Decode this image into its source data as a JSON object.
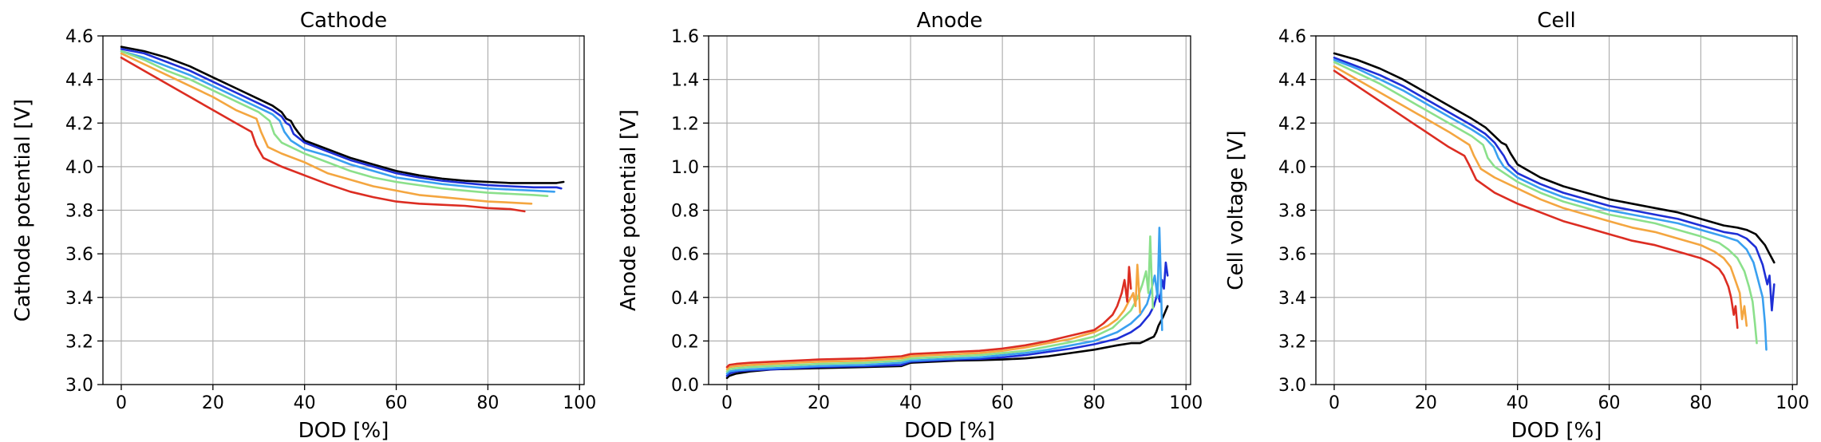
{
  "chart_data": [
    {
      "type": "line",
      "title": "Cathode",
      "xlabel": "DOD [%]",
      "ylabel": "Cathode potential [V]",
      "xlim": [
        -4,
        101
      ],
      "ylim": [
        3.0,
        4.6
      ],
      "xticks": [
        0,
        20,
        40,
        60,
        80,
        100
      ],
      "yticks": [
        3.0,
        3.2,
        3.4,
        3.6,
        3.8,
        4.0,
        4.2,
        4.4,
        4.6
      ],
      "tick_decimals": 1,
      "grid": true,
      "series": [
        {
          "color": "#000000",
          "x": [
            0,
            5,
            10,
            15,
            20,
            25,
            30,
            33,
            35,
            36,
            37,
            37.8,
            38.5,
            40,
            45,
            50,
            55,
            60,
            65,
            70,
            75,
            80,
            85,
            90,
            95,
            96.5
          ],
          "y": [
            4.55,
            4.53,
            4.5,
            4.46,
            4.41,
            4.36,
            4.31,
            4.28,
            4.25,
            4.22,
            4.21,
            4.18,
            4.16,
            4.12,
            4.08,
            4.04,
            4.01,
            3.98,
            3.96,
            3.945,
            3.935,
            3.93,
            3.925,
            3.925,
            3.925,
            3.93
          ]
        },
        {
          "color": "#1e2fd6",
          "x": [
            0,
            5,
            10,
            15,
            20,
            25,
            30,
            33,
            35,
            36,
            36.8,
            37.6,
            40,
            45,
            50,
            55,
            60,
            65,
            70,
            75,
            80,
            85,
            90,
            95,
            96
          ],
          "y": [
            4.54,
            4.52,
            4.48,
            4.44,
            4.39,
            4.34,
            4.29,
            4.26,
            4.23,
            4.2,
            4.19,
            4.15,
            4.11,
            4.07,
            4.03,
            4.0,
            3.97,
            3.95,
            3.935,
            3.925,
            3.915,
            3.91,
            3.905,
            3.905,
            3.9
          ]
        },
        {
          "color": "#3aa0f0",
          "x": [
            0,
            5,
            10,
            15,
            20,
            25,
            30,
            33,
            34.6,
            35.6,
            37,
            40,
            45,
            50,
            55,
            60,
            65,
            70,
            75,
            80,
            85,
            90,
            94.5
          ],
          "y": [
            4.53,
            4.5,
            4.46,
            4.42,
            4.37,
            4.32,
            4.27,
            4.24,
            4.21,
            4.16,
            4.12,
            4.08,
            4.05,
            4.01,
            3.98,
            3.95,
            3.935,
            3.92,
            3.91,
            3.9,
            3.895,
            3.89,
            3.885
          ]
        },
        {
          "color": "#8be08b",
          "x": [
            0,
            5,
            10,
            15,
            20,
            25,
            30,
            32.4,
            33.4,
            35,
            40,
            45,
            50,
            55,
            60,
            65,
            70,
            75,
            80,
            85,
            90,
            93
          ],
          "y": [
            4.53,
            4.49,
            4.44,
            4.4,
            4.35,
            4.3,
            4.25,
            4.21,
            4.15,
            4.11,
            4.06,
            4.02,
            3.98,
            3.95,
            3.93,
            3.915,
            3.9,
            3.89,
            3.88,
            3.875,
            3.87,
            3.865
          ]
        },
        {
          "color": "#f4a640",
          "x": [
            0,
            5,
            10,
            15,
            20,
            25,
            29.5,
            30.5,
            32,
            35,
            40,
            45,
            50,
            55,
            60,
            65,
            70,
            75,
            80,
            85,
            89.5
          ],
          "y": [
            4.52,
            4.47,
            4.42,
            4.37,
            4.32,
            4.26,
            4.22,
            4.16,
            4.09,
            4.06,
            4.02,
            3.97,
            3.94,
            3.91,
            3.89,
            3.87,
            3.86,
            3.85,
            3.84,
            3.835,
            3.83
          ]
        },
        {
          "color": "#dc2d22",
          "x": [
            0,
            5,
            10,
            15,
            20,
            25,
            28.4,
            29.4,
            31,
            35,
            40,
            45,
            50,
            55,
            60,
            65,
            70,
            75,
            80,
            85,
            88
          ],
          "y": [
            4.5,
            4.44,
            4.38,
            4.32,
            4.26,
            4.2,
            4.16,
            4.1,
            4.04,
            4.0,
            3.96,
            3.92,
            3.885,
            3.86,
            3.84,
            3.83,
            3.825,
            3.82,
            3.81,
            3.805,
            3.795
          ]
        }
      ]
    },
    {
      "type": "line",
      "title": "Anode",
      "xlabel": "DOD [%]",
      "ylabel": "Anode potential [V]",
      "xlim": [
        -4,
        101
      ],
      "ylim": [
        0.0,
        1.6
      ],
      "xticks": [
        0,
        20,
        40,
        60,
        80,
        100
      ],
      "yticks": [
        0.0,
        0.2,
        0.4,
        0.6,
        0.8,
        1.0,
        1.2,
        1.4,
        1.6
      ],
      "tick_decimals": 1,
      "grid": true,
      "series": [
        {
          "color": "#000000",
          "x": [
            0,
            0.5,
            2,
            5,
            10,
            20,
            30,
            38,
            40,
            45,
            50,
            55,
            60,
            65,
            70,
            75,
            80,
            85,
            88,
            90,
            91,
            92,
            93,
            93.5,
            94,
            95,
            96
          ],
          "y": [
            0.03,
            0.04,
            0.05,
            0.06,
            0.07,
            0.075,
            0.08,
            0.085,
            0.1,
            0.105,
            0.11,
            0.112,
            0.115,
            0.12,
            0.13,
            0.145,
            0.16,
            0.18,
            0.19,
            0.19,
            0.2,
            0.21,
            0.22,
            0.24,
            0.27,
            0.31,
            0.36
          ]
        },
        {
          "color": "#1e2fd6",
          "x": [
            0,
            0.5,
            2,
            5,
            10,
            20,
            30,
            38,
            40,
            45,
            50,
            55,
            60,
            65,
            70,
            75,
            80,
            85,
            88,
            90,
            92,
            93,
            93.8,
            94.3,
            94.8,
            95.2,
            95.6,
            96
          ],
          "y": [
            0.04,
            0.05,
            0.06,
            0.065,
            0.07,
            0.08,
            0.085,
            0.09,
            0.105,
            0.11,
            0.115,
            0.118,
            0.125,
            0.135,
            0.15,
            0.165,
            0.185,
            0.21,
            0.24,
            0.27,
            0.32,
            0.36,
            0.42,
            0.38,
            0.48,
            0.44,
            0.56,
            0.5
          ]
        },
        {
          "color": "#3aa0f0",
          "x": [
            0,
            0.5,
            2,
            5,
            10,
            20,
            30,
            38,
            40,
            45,
            50,
            55,
            60,
            65,
            70,
            75,
            80,
            85,
            88,
            90,
            91.5,
            92.5,
            93.2,
            93.8,
            94.2,
            94.5,
            94.8
          ],
          "y": [
            0.05,
            0.06,
            0.065,
            0.07,
            0.075,
            0.085,
            0.09,
            0.1,
            0.11,
            0.115,
            0.12,
            0.125,
            0.135,
            0.145,
            0.16,
            0.18,
            0.2,
            0.24,
            0.28,
            0.32,
            0.37,
            0.44,
            0.5,
            0.4,
            0.72,
            0.5,
            0.25
          ]
        },
        {
          "color": "#8be08b",
          "x": [
            0,
            0.5,
            2,
            5,
            10,
            20,
            30,
            38,
            40,
            45,
            50,
            55,
            60,
            65,
            70,
            75,
            80,
            84,
            86,
            88,
            89.5,
            90.5,
            91.3,
            91.8,
            92.2,
            92.5,
            92.8
          ],
          "y": [
            0.06,
            0.07,
            0.075,
            0.08,
            0.085,
            0.095,
            0.1,
            0.11,
            0.12,
            0.125,
            0.13,
            0.135,
            0.145,
            0.155,
            0.175,
            0.195,
            0.22,
            0.26,
            0.3,
            0.34,
            0.4,
            0.46,
            0.52,
            0.42,
            0.68,
            0.5,
            0.35
          ]
        },
        {
          "color": "#f4a640",
          "x": [
            0,
            0.5,
            2,
            5,
            10,
            20,
            30,
            38,
            40,
            45,
            50,
            55,
            60,
            65,
            70,
            75,
            80,
            83,
            85,
            86.5,
            87.5,
            88.5,
            89,
            89.4,
            89.7,
            90
          ],
          "y": [
            0.07,
            0.08,
            0.085,
            0.09,
            0.095,
            0.105,
            0.11,
            0.12,
            0.13,
            0.135,
            0.14,
            0.145,
            0.155,
            0.17,
            0.19,
            0.21,
            0.24,
            0.27,
            0.3,
            0.34,
            0.38,
            0.42,
            0.36,
            0.55,
            0.45,
            0.33
          ]
        },
        {
          "color": "#dc2d22",
          "x": [
            0,
            0.5,
            2,
            5,
            10,
            20,
            30,
            38,
            40,
            45,
            50,
            55,
            60,
            65,
            70,
            75,
            80,
            82,
            84,
            85,
            86,
            86.6,
            87.2,
            87.6,
            88
          ],
          "y": [
            0.08,
            0.09,
            0.095,
            0.1,
            0.105,
            0.115,
            0.12,
            0.13,
            0.14,
            0.145,
            0.15,
            0.155,
            0.165,
            0.18,
            0.2,
            0.225,
            0.25,
            0.28,
            0.32,
            0.36,
            0.42,
            0.48,
            0.38,
            0.54,
            0.44
          ]
        }
      ]
    },
    {
      "type": "line",
      "title": "Cell",
      "xlabel": "DOD [%]",
      "ylabel": "Cell voltage [V]",
      "xlim": [
        -4,
        101
      ],
      "ylim": [
        3.0,
        4.6
      ],
      "xticks": [
        0,
        20,
        40,
        60,
        80,
        100
      ],
      "yticks": [
        3.0,
        3.2,
        3.4,
        3.6,
        3.8,
        4.0,
        4.2,
        4.4,
        4.6
      ],
      "tick_decimals": 1,
      "grid": true,
      "series": [
        {
          "color": "#000000",
          "x": [
            0,
            5,
            10,
            15,
            20,
            25,
            30,
            33,
            35,
            36.5,
            37.5,
            38.5,
            40,
            45,
            50,
            55,
            60,
            65,
            70,
            75,
            80,
            85,
            88,
            90,
            92,
            94,
            95,
            96
          ],
          "y": [
            4.52,
            4.49,
            4.45,
            4.4,
            4.34,
            4.28,
            4.22,
            4.18,
            4.14,
            4.11,
            4.1,
            4.06,
            4.01,
            3.95,
            3.91,
            3.88,
            3.85,
            3.83,
            3.81,
            3.79,
            3.76,
            3.73,
            3.72,
            3.71,
            3.69,
            3.64,
            3.6,
            3.56
          ]
        },
        {
          "color": "#1e2fd6",
          "x": [
            0,
            5,
            10,
            15,
            20,
            25,
            30,
            33,
            35,
            36,
            37,
            38,
            40,
            45,
            50,
            55,
            60,
            65,
            70,
            75,
            80,
            85,
            88,
            90,
            92,
            93.5,
            94.5,
            95,
            95.5,
            96
          ],
          "y": [
            4.5,
            4.46,
            4.42,
            4.37,
            4.31,
            4.25,
            4.19,
            4.15,
            4.11,
            4.08,
            4.05,
            4.01,
            3.97,
            3.92,
            3.88,
            3.85,
            3.82,
            3.8,
            3.78,
            3.76,
            3.73,
            3.7,
            3.69,
            3.67,
            3.63,
            3.55,
            3.46,
            3.5,
            3.34,
            3.46
          ]
        },
        {
          "color": "#3aa0f0",
          "x": [
            0,
            5,
            10,
            15,
            20,
            25,
            30,
            33,
            34.8,
            35.8,
            37,
            40,
            45,
            50,
            55,
            60,
            65,
            70,
            75,
            80,
            85,
            88,
            90,
            91.5,
            92.5,
            93.5,
            94,
            94.3
          ],
          "y": [
            4.49,
            4.45,
            4.4,
            4.35,
            4.29,
            4.23,
            4.17,
            4.13,
            4.09,
            4.04,
            4.0,
            3.95,
            3.9,
            3.86,
            3.83,
            3.8,
            3.78,
            3.76,
            3.74,
            3.71,
            3.68,
            3.66,
            3.62,
            3.56,
            3.48,
            3.4,
            3.28,
            3.16
          ]
        },
        {
          "color": "#8be08b",
          "x": [
            0,
            5,
            10,
            15,
            20,
            25,
            30,
            32.5,
            33.5,
            35,
            40,
            45,
            50,
            55,
            60,
            65,
            70,
            75,
            80,
            84,
            86,
            88,
            89.5,
            90.5,
            91.3,
            91.8,
            92.2
          ],
          "y": [
            4.48,
            4.43,
            4.38,
            4.32,
            4.26,
            4.2,
            4.14,
            4.1,
            4.04,
            4.0,
            3.93,
            3.88,
            3.84,
            3.81,
            3.78,
            3.76,
            3.74,
            3.71,
            3.68,
            3.65,
            3.62,
            3.58,
            3.52,
            3.45,
            3.38,
            3.28,
            3.19
          ]
        },
        {
          "color": "#f4a640",
          "x": [
            0,
            5,
            10,
            15,
            20,
            25,
            29.5,
            30.5,
            32,
            35,
            40,
            45,
            50,
            55,
            60,
            65,
            70,
            75,
            80,
            83,
            85,
            86.5,
            87.5,
            88.5,
            89,
            89.5,
            90
          ],
          "y": [
            4.46,
            4.4,
            4.34,
            4.28,
            4.22,
            4.16,
            4.1,
            4.05,
            3.99,
            3.95,
            3.9,
            3.85,
            3.81,
            3.78,
            3.75,
            3.72,
            3.7,
            3.67,
            3.64,
            3.61,
            3.58,
            3.54,
            3.48,
            3.42,
            3.3,
            3.36,
            3.27
          ]
        },
        {
          "color": "#dc2d22",
          "x": [
            0,
            5,
            10,
            15,
            20,
            25,
            28.4,
            29.4,
            31,
            35,
            40,
            45,
            50,
            55,
            60,
            65,
            70,
            75,
            80,
            82,
            84,
            85,
            86,
            86.6,
            87.2,
            87.6,
            88
          ],
          "y": [
            4.44,
            4.37,
            4.3,
            4.23,
            4.16,
            4.09,
            4.05,
            4.01,
            3.94,
            3.88,
            3.83,
            3.79,
            3.75,
            3.72,
            3.69,
            3.66,
            3.64,
            3.61,
            3.58,
            3.56,
            3.53,
            3.5,
            3.45,
            3.4,
            3.32,
            3.36,
            3.26
          ]
        }
      ]
    }
  ]
}
